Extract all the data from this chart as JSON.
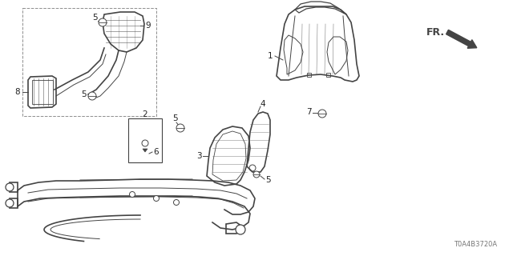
{
  "bg_color": "#ffffff",
  "line_color": "#444444",
  "label_color": "#222222",
  "diagram_id": "T0A4B3720A",
  "figsize": [
    6.4,
    3.2
  ],
  "dpi": 100
}
